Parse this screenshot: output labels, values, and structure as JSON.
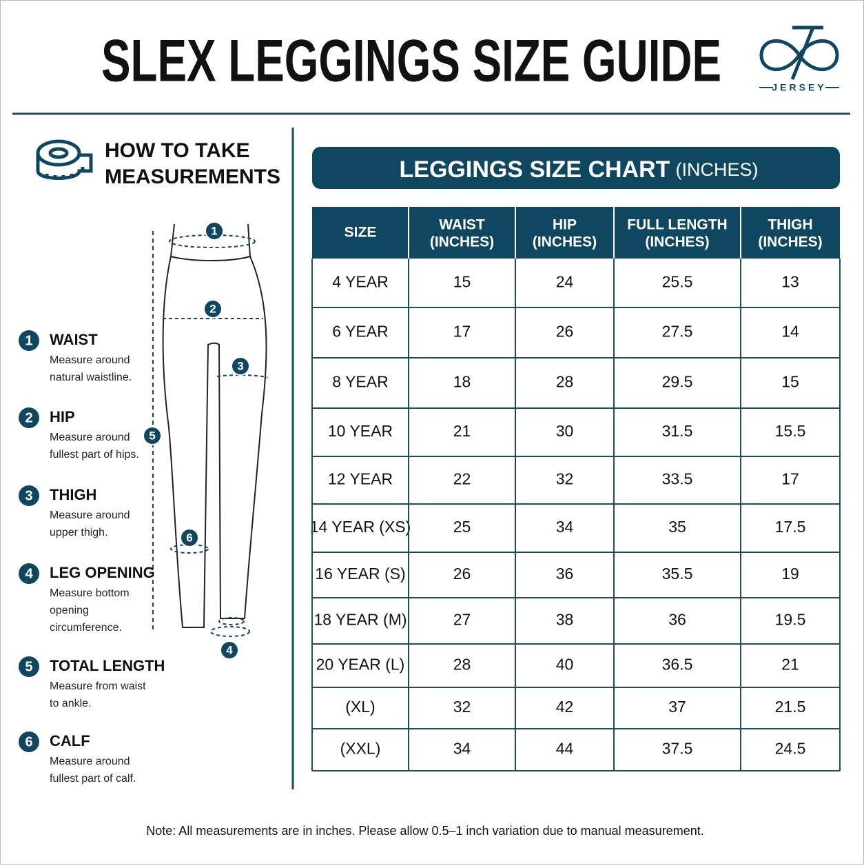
{
  "header": {
    "title": "SLEX LEGGINGS SIZE GUIDE",
    "logo": "JERSEY"
  },
  "guide": {
    "title_lines": [
      "HOW TO TAKE",
      "MEASUREMENTS"
    ],
    "steps": [
      {
        "number": 1,
        "name": "WAIST",
        "lines": [
          "Measure around",
          "natural waistline."
        ]
      },
      {
        "number": 2,
        "name": "HIP",
        "lines": [
          "Measure around",
          "fullest part of hips."
        ]
      },
      {
        "number": 3,
        "name": "THIGH",
        "lines": [
          "Measure around",
          "upper thigh."
        ]
      },
      {
        "number": 4,
        "name": "LEG OPENING",
        "lines": [
          "Measure bottom",
          "opening",
          "circumference."
        ]
      },
      {
        "number": 5,
        "name": "TOTAL LENGTH",
        "lines": [
          "Measure from waist",
          "to ankle."
        ]
      },
      {
        "number": 6,
        "name": "CALF",
        "lines": [
          "Measure around",
          "fullest part of calf."
        ]
      }
    ],
    "diagram_badges": [
      1,
      2,
      3,
      5,
      6,
      4
    ]
  },
  "table": {
    "title": "LEGGINGS SIZE CHART",
    "unit": "(INCHES)",
    "columns": [
      {
        "name": "SIZE"
      },
      {
        "name": "WAIST",
        "unit": "(INCHES)"
      },
      {
        "name": "HIP",
        "unit": "(INCHES)"
      },
      {
        "name": "FULL LENGTH",
        "unit": "(INCHES)"
      },
      {
        "name": "THIGH",
        "unit": "(INCHES)"
      }
    ],
    "rows": [
      [
        "4 YEAR",
        15,
        24,
        25.5,
        13
      ],
      [
        "6 YEAR",
        17,
        26,
        27.5,
        14
      ],
      [
        "8 YEAR",
        18,
        28,
        29.5,
        15
      ],
      [
        "10 YEAR",
        21,
        30,
        31.5,
        15.5
      ],
      [
        "12 YEAR",
        22,
        32,
        33.5,
        17
      ],
      [
        "14 YEAR (XS)",
        25,
        34,
        35,
        17.5
      ],
      [
        "16 YEAR (S)",
        26,
        36,
        35.5,
        19
      ],
      [
        "18 YEAR (M)",
        27,
        38,
        36,
        19.5
      ],
      [
        "20 YEAR (L)",
        28,
        40,
        36.5,
        21
      ],
      [
        "(XL)",
        32,
        42,
        37,
        21.5
      ],
      [
        "(XXL)",
        34,
        44,
        37.5,
        24.5
      ]
    ]
  },
  "note": "Note: All measurements are in inches. Please allow 0.5–1 inch variation due to manual measurement."
}
